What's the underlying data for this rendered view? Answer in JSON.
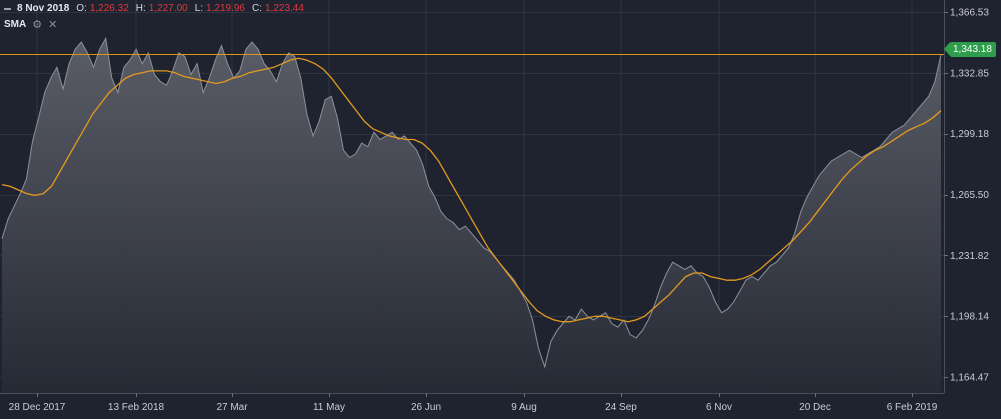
{
  "legend": {
    "date": "8 Nov 2018",
    "o_label": "O:",
    "o_value": "1,226.32",
    "h_label": "H:",
    "h_value": "1,227.00",
    "l_label": "L:",
    "l_value": "1,219.96",
    "c_label": "C:",
    "c_value": "1,223.44",
    "indicator": "SMA",
    "settings_icon": "gear-icon",
    "close_icon": "close-icon"
  },
  "last_price_badge": "1,343.18",
  "colors": {
    "background": "#1f2330",
    "grid": "#2f3442",
    "area_fill_top": "#5a5d66",
    "area_fill_bottom": "#262a35",
    "area_line": "#8d919b",
    "sma_line": "#e39a1f",
    "price_line": "#d9951e",
    "badge": "#2e9e4d",
    "axis_text": "#c9ccd4"
  },
  "chart_data": {
    "type": "area",
    "title": "",
    "xlabel": "",
    "ylabel": "",
    "x_tick_labels": [
      "28 Dec 2017",
      "13 Feb 2018",
      "27 Mar",
      "11 May",
      "26 Jun",
      "9 Aug",
      "24 Sep",
      "6 Nov",
      "20 Dec",
      "6 Feb 2019"
    ],
    "y_tick_labels": [
      "1,366.53",
      "1,332.85",
      "1,299.18",
      "1,265.50",
      "1,231.82",
      "1,198.14",
      "1,164.47"
    ],
    "y_ticks": [
      1366.53,
      1332.85,
      1299.18,
      1265.5,
      1231.82,
      1198.14,
      1164.47
    ],
    "ylim": [
      1155.5,
      1373.3
    ],
    "horizontal_line": 1343.18,
    "grid": true,
    "series": [
      {
        "values": [
          1241,
          1252,
          1259,
          1266,
          1274,
          1295,
          1308,
          1322,
          1330,
          1336,
          1324,
          1338,
          1346,
          1350,
          1344,
          1336,
          1346,
          1352,
          1330,
          1322,
          1336,
          1340,
          1346,
          1338,
          1344,
          1332,
          1328,
          1326,
          1334,
          1344,
          1342,
          1332,
          1338,
          1322,
          1330,
          1340,
          1348,
          1338,
          1330,
          1334,
          1346,
          1350,
          1346,
          1338,
          1334,
          1328,
          1338,
          1344,
          1342,
          1330,
          1310,
          1298,
          1306,
          1318,
          1320,
          1308,
          1290,
          1286,
          1288,
          1294,
          1292,
          1300,
          1296,
          1298,
          1300,
          1296,
          1298,
          1294,
          1290,
          1282,
          1270,
          1264,
          1256,
          1252,
          1250,
          1246,
          1248,
          1244,
          1240,
          1236,
          1234,
          1230,
          1226,
          1222,
          1218,
          1212,
          1206,
          1196,
          1180,
          1170,
          1184,
          1190,
          1194,
          1198,
          1196,
          1202,
          1198,
          1196,
          1198,
          1200,
          1194,
          1192,
          1196,
          1188,
          1186,
          1190,
          1196,
          1204,
          1214,
          1222,
          1228,
          1226,
          1224,
          1226,
          1222,
          1220,
          1214,
          1206,
          1200,
          1202,
          1206,
          1212,
          1218,
          1220,
          1218,
          1222,
          1226,
          1228,
          1232,
          1236,
          1244,
          1256,
          1264,
          1270,
          1276,
          1280,
          1284,
          1286,
          1288,
          1290,
          1288,
          1286,
          1288,
          1290,
          1292,
          1296,
          1300,
          1302,
          1304,
          1308,
          1312,
          1316,
          1320,
          1328,
          1343
        ]
      },
      {
        "name": "SMA",
        "values": [
          1271,
          1270,
          1268,
          1266,
          1265,
          1266,
          1270,
          1278,
          1286,
          1294,
          1302,
          1310,
          1316,
          1322,
          1326,
          1330,
          1332,
          1333,
          1334,
          1334,
          1334,
          1333,
          1331,
          1330,
          1329,
          1328,
          1327,
          1328,
          1330,
          1331,
          1333,
          1334,
          1335,
          1336,
          1338,
          1340,
          1341,
          1340,
          1338,
          1335,
          1330,
          1324,
          1318,
          1312,
          1306,
          1302,
          1300,
          1298,
          1297,
          1296,
          1296,
          1294,
          1290,
          1284,
          1276,
          1268,
          1260,
          1252,
          1244,
          1236,
          1230,
          1224,
          1218,
          1212,
          1206,
          1201,
          1198,
          1196,
          1195,
          1195,
          1196,
          1197,
          1198,
          1198,
          1197,
          1196,
          1195,
          1196,
          1198,
          1202,
          1206,
          1210,
          1215,
          1220,
          1222,
          1222,
          1220,
          1219,
          1218,
          1218,
          1219,
          1221,
          1224,
          1228,
          1232,
          1236,
          1240,
          1245,
          1250,
          1256,
          1262,
          1268,
          1274,
          1279,
          1283,
          1287,
          1290,
          1292,
          1295,
          1298,
          1301,
          1303,
          1305,
          1308,
          1312
        ]
      }
    ]
  }
}
